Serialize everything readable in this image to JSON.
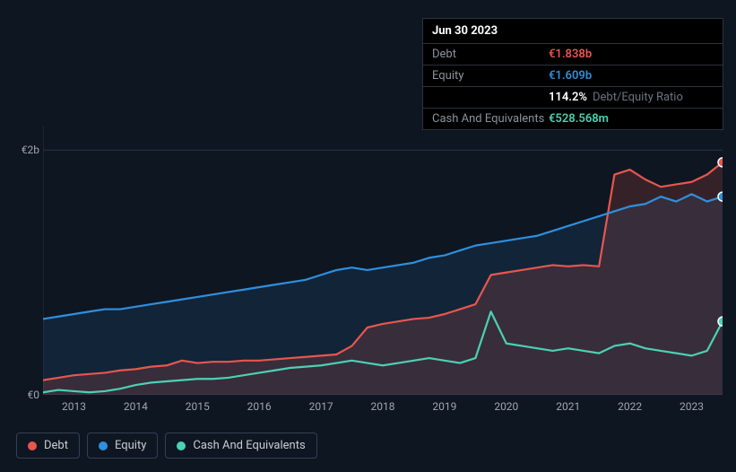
{
  "chart": {
    "type": "line-area",
    "background_color": "#0e1622",
    "plot_background": "#0e1622",
    "grid_color": "#2a333f",
    "axis_color": "#2a333f",
    "label_color": "#a0a6af",
    "label_fontsize": 12,
    "ylim": [
      0,
      2.2
    ],
    "y_ticks": [
      {
        "value": 0,
        "label": "€0"
      },
      {
        "value": 2,
        "label": "€2b"
      }
    ],
    "x_categories": [
      "2013",
      "2014",
      "2015",
      "2016",
      "2017",
      "2018",
      "2019",
      "2020",
      "2021",
      "2022",
      "2023"
    ],
    "x_count_points": 45,
    "series": [
      {
        "name": "Debt",
        "color": "#e8564e",
        "fill_opacity": 0.18,
        "line_width": 2.2,
        "data": [
          0.12,
          0.14,
          0.16,
          0.17,
          0.18,
          0.2,
          0.21,
          0.23,
          0.24,
          0.28,
          0.26,
          0.27,
          0.27,
          0.28,
          0.28,
          0.29,
          0.3,
          0.31,
          0.32,
          0.33,
          0.4,
          0.55,
          0.58,
          0.6,
          0.62,
          0.63,
          0.66,
          0.7,
          0.74,
          0.98,
          1.0,
          1.02,
          1.04,
          1.06,
          1.05,
          1.06,
          1.05,
          1.8,
          1.84,
          1.76,
          1.7,
          1.72,
          1.74,
          1.8,
          1.9
        ]
      },
      {
        "name": "Equity",
        "color": "#2f8fdd",
        "fill_opacity": 0.12,
        "line_width": 2.2,
        "data": [
          0.62,
          0.64,
          0.66,
          0.68,
          0.7,
          0.7,
          0.72,
          0.74,
          0.76,
          0.78,
          0.8,
          0.82,
          0.84,
          0.86,
          0.88,
          0.9,
          0.92,
          0.94,
          0.98,
          1.02,
          1.04,
          1.02,
          1.04,
          1.06,
          1.08,
          1.12,
          1.14,
          1.18,
          1.22,
          1.24,
          1.26,
          1.28,
          1.3,
          1.34,
          1.38,
          1.42,
          1.46,
          1.5,
          1.54,
          1.56,
          1.62,
          1.58,
          1.64,
          1.58,
          1.62
        ]
      },
      {
        "name": "Cash And Equivalents",
        "color": "#4bd1b3",
        "fill_opacity": 0.0,
        "line_width": 2.2,
        "data": [
          0.02,
          0.04,
          0.03,
          0.02,
          0.03,
          0.05,
          0.08,
          0.1,
          0.11,
          0.12,
          0.13,
          0.13,
          0.14,
          0.16,
          0.18,
          0.2,
          0.22,
          0.23,
          0.24,
          0.26,
          0.28,
          0.26,
          0.24,
          0.26,
          0.28,
          0.3,
          0.28,
          0.26,
          0.3,
          0.68,
          0.42,
          0.4,
          0.38,
          0.36,
          0.38,
          0.36,
          0.34,
          0.4,
          0.42,
          0.38,
          0.36,
          0.34,
          0.32,
          0.36,
          0.6
        ]
      }
    ],
    "marker_end": {
      "shape": "circle",
      "size": 5
    }
  },
  "tooltip": {
    "date": "Jun 30 2023",
    "rows": [
      {
        "label": "Debt",
        "value": "€1.838b",
        "color_class": "red"
      },
      {
        "label": "Equity",
        "value": "€1.609b",
        "color_class": "blue"
      },
      {
        "label": "",
        "value": "114.2%",
        "subtext": "Debt/Equity Ratio",
        "color_class": "white"
      },
      {
        "label": "Cash And Equivalents",
        "value": "€528.568m",
        "color_class": "teal"
      }
    ]
  },
  "legend": {
    "items": [
      {
        "label": "Debt",
        "color": "#e8564e"
      },
      {
        "label": "Equity",
        "color": "#2f8fdd"
      },
      {
        "label": "Cash And Equivalents",
        "color": "#4bd1b3"
      }
    ],
    "border_color": "#324052",
    "item_radius": 4
  }
}
